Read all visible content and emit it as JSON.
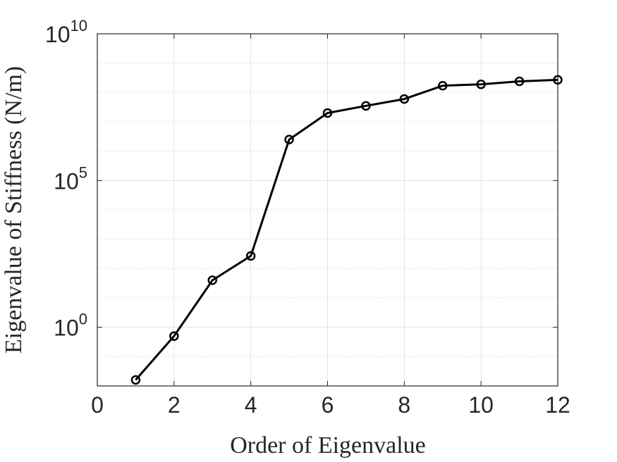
{
  "chart_data": {
    "type": "line",
    "title": "",
    "xlabel": "Order of Eigenvalue",
    "ylabel": "Eigenvalue of Stiffness (N/m)",
    "xlim": [
      0,
      12
    ],
    "ylim": [
      0.01,
      10000000000
    ],
    "yscale": "log",
    "grid": true,
    "legend": "none",
    "marker": "circle",
    "line_color": "#000000",
    "x_ticks": [
      {
        "value": 0,
        "label": "0"
      },
      {
        "value": 2,
        "label": "2"
      },
      {
        "value": 4,
        "label": "4"
      },
      {
        "value": 6,
        "label": "6"
      },
      {
        "value": 8,
        "label": "8"
      },
      {
        "value": 10,
        "label": "10"
      },
      {
        "value": 12,
        "label": "12"
      }
    ],
    "y_ticks": [
      {
        "value": 1,
        "base": "10",
        "exp": "0"
      },
      {
        "value": 100000,
        "base": "10",
        "exp": "5"
      },
      {
        "value": 10000000000,
        "base": "10",
        "exp": "10"
      }
    ],
    "x": [
      1,
      2,
      3,
      4,
      5,
      6,
      7,
      8,
      9,
      10,
      11,
      12
    ],
    "y": [
      0.016,
      0.5,
      40,
      270,
      2500000,
      20000000,
      35000000,
      60000000,
      170000000,
      190000000,
      240000000,
      270000000
    ]
  }
}
